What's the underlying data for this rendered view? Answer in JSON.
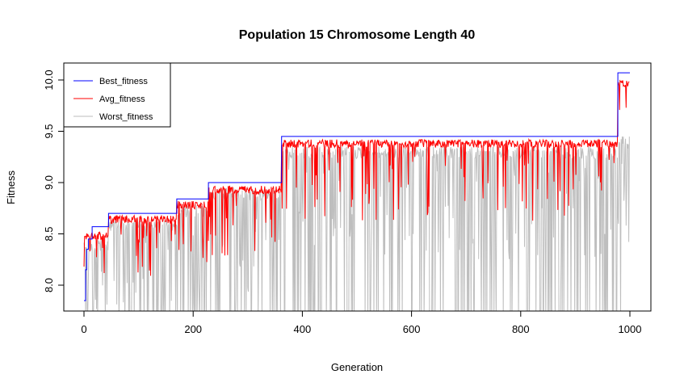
{
  "chart_data": {
    "type": "line",
    "title": "Population 15  Chromosome Length 40",
    "xlabel": "Generation",
    "ylabel": "Fitness",
    "xlim": [
      0,
      1000
    ],
    "ylim": [
      7.75,
      10.1
    ],
    "x_ticks": [
      0,
      200,
      400,
      600,
      800,
      1000
    ],
    "y_ticks": [
      8.0,
      8.5,
      9.0,
      9.5,
      10.0
    ],
    "x_tick_labels": [
      "0",
      "200",
      "400",
      "600",
      "800",
      "1000"
    ],
    "y_tick_labels": [
      "8.0",
      "8.5",
      "9.0",
      "9.5",
      "10.0"
    ],
    "grid": false,
    "legend_position": "top-left",
    "series": [
      {
        "name": "Best_fitness",
        "color": "#0000ff",
        "steps": [
          [
            0,
            7.85
          ],
          [
            3,
            8.15
          ],
          [
            5,
            8.35
          ],
          [
            8,
            8.45
          ],
          [
            15,
            8.57
          ],
          [
            45,
            8.7
          ],
          [
            170,
            8.84
          ],
          [
            228,
            9.0
          ],
          [
            362,
            9.45
          ],
          [
            978,
            10.07
          ],
          [
            1000,
            10.07
          ]
        ]
      },
      {
        "name": "Avg_fitness",
        "color": "#ff0000",
        "segments": [
          {
            "x0": 0,
            "x1": 45,
            "level": 8.52,
            "max_drop": 0.35
          },
          {
            "x0": 45,
            "x1": 170,
            "level": 8.68,
            "max_drop": 0.45
          },
          {
            "x0": 170,
            "x1": 228,
            "level": 8.82,
            "max_drop": 0.45
          },
          {
            "x0": 228,
            "x1": 362,
            "level": 8.97,
            "max_drop": 0.55
          },
          {
            "x0": 362,
            "x1": 978,
            "level": 9.42,
            "max_drop": 0.65
          },
          {
            "x0": 978,
            "x1": 1000,
            "level": 10.0,
            "max_drop": 0.15
          }
        ]
      },
      {
        "name": "Worst_fitness",
        "color": "#bebebe",
        "segments": [
          {
            "x0": 0,
            "x1": 45,
            "level": 8.45
          },
          {
            "x0": 45,
            "x1": 170,
            "level": 8.65
          },
          {
            "x0": 170,
            "x1": 228,
            "level": 8.78
          },
          {
            "x0": 228,
            "x1": 362,
            "level": 8.95
          },
          {
            "x0": 362,
            "x1": 978,
            "level": 9.35
          },
          {
            "x0": 978,
            "x1": 1000,
            "level": 9.45
          }
        ],
        "floor": 7.75
      }
    ]
  }
}
